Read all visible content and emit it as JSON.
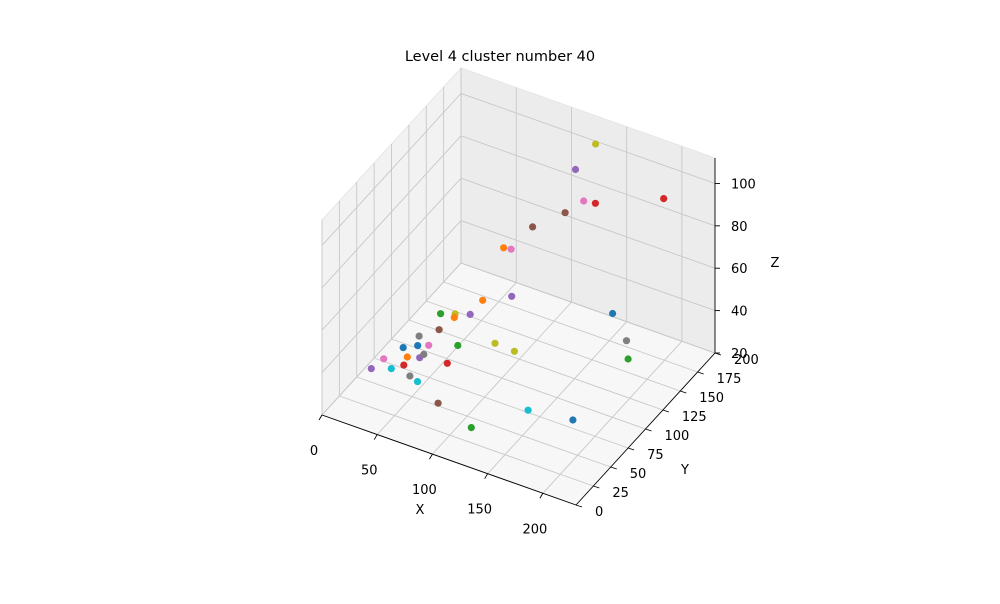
{
  "chart_data": {
    "type": "scatter",
    "projection": "3d",
    "title": "Level 4 cluster number 40",
    "xlabel": "X",
    "ylabel": "Y",
    "zlabel": "Z",
    "xlim": [
      0,
      230
    ],
    "ylim": [
      0,
      200
    ],
    "zlim": [
      20,
      112
    ],
    "xticks": [
      0,
      50,
      100,
      150,
      200
    ],
    "yticks": [
      0,
      25,
      50,
      75,
      100,
      125,
      150,
      175,
      200
    ],
    "zticks": [
      20,
      40,
      60,
      80,
      100
    ],
    "grid": true,
    "legend": "none",
    "points": [
      {
        "x": 215,
        "y": 150,
        "z": 108,
        "color": "#d62728"
      },
      {
        "x": 125,
        "y": 195,
        "z": 101,
        "color": "#bcbd22"
      },
      {
        "x": 150,
        "y": 155,
        "z": 92,
        "color": "#d62728"
      },
      {
        "x": 110,
        "y": 190,
        "z": 88,
        "color": "#9467bd"
      },
      {
        "x": 130,
        "y": 170,
        "z": 84,
        "color": "#e377c2"
      },
      {
        "x": 110,
        "y": 175,
        "z": 73,
        "color": "#8c564b"
      },
      {
        "x": 90,
        "y": 160,
        "z": 68,
        "color": "#8c564b"
      },
      {
        "x": 230,
        "y": 75,
        "z": 62,
        "color": "#2ca02c"
      },
      {
        "x": 80,
        "y": 145,
        "z": 61,
        "color": "#e377c2"
      },
      {
        "x": 70,
        "y": 150,
        "z": 58,
        "color": "#ff7f0e"
      },
      {
        "x": 175,
        "y": 140,
        "z": 50,
        "color": "#1f77b4"
      },
      {
        "x": 90,
        "y": 130,
        "z": 46,
        "color": "#9467bd"
      },
      {
        "x": 70,
        "y": 120,
        "z": 44,
        "color": "#ff7f0e"
      },
      {
        "x": 175,
        "y": 160,
        "z": 30,
        "color": "#7f7f7f"
      },
      {
        "x": 105,
        "y": 110,
        "z": 30,
        "color": "#bcbd22"
      },
      {
        "x": 65,
        "y": 110,
        "z": 40,
        "color": "#9467bd"
      },
      {
        "x": 45,
        "y": 120,
        "z": 33,
        "color": "#bcbd22"
      },
      {
        "x": 100,
        "y": 90,
        "z": 40,
        "color": "#bcbd22"
      },
      {
        "x": 35,
        "y": 115,
        "z": 33,
        "color": "#2ca02c"
      },
      {
        "x": 60,
        "y": 95,
        "z": 43,
        "color": "#ff7f0e"
      },
      {
        "x": 60,
        "y": 100,
        "z": 28,
        "color": "#2ca02c"
      },
      {
        "x": 180,
        "y": 75,
        "z": 24,
        "color": "#1f77b4"
      },
      {
        "x": 40,
        "y": 105,
        "z": 30,
        "color": "#8c564b"
      },
      {
        "x": 130,
        "y": 90,
        "z": 14,
        "color": "#17becf"
      },
      {
        "x": 25,
        "y": 100,
        "z": 26,
        "color": "#7f7f7f"
      },
      {
        "x": 60,
        "y": 85,
        "z": 25,
        "color": "#d62728"
      },
      {
        "x": 30,
        "y": 90,
        "z": 26,
        "color": "#1f77b4"
      },
      {
        "x": 35,
        "y": 85,
        "z": 23,
        "color": "#9467bd"
      },
      {
        "x": 40,
        "y": 90,
        "z": 28,
        "color": "#e377c2"
      },
      {
        "x": 45,
        "y": 75,
        "z": 30,
        "color": "#7f7f7f"
      },
      {
        "x": 20,
        "y": 85,
        "z": 25,
        "color": "#1f77b4"
      },
      {
        "x": 30,
        "y": 75,
        "z": 26,
        "color": "#ff7f0e"
      },
      {
        "x": 30,
        "y": 70,
        "z": 24,
        "color": "#d62728"
      },
      {
        "x": 25,
        "y": 60,
        "z": 25,
        "color": "#17becf"
      },
      {
        "x": 15,
        "y": 65,
        "z": 26,
        "color": "#e377c2"
      },
      {
        "x": 45,
        "y": 55,
        "z": 27,
        "color": "#7f7f7f"
      },
      {
        "x": 55,
        "y": 50,
        "z": 28,
        "color": "#17becf"
      },
      {
        "x": 80,
        "y": 40,
        "z": 26,
        "color": "#8c564b"
      },
      {
        "x": 10,
        "y": 55,
        "z": 24,
        "color": "#9467bd"
      },
      {
        "x": 110,
        "y": 40,
        "z": 20,
        "color": "#2ca02c"
      }
    ]
  }
}
